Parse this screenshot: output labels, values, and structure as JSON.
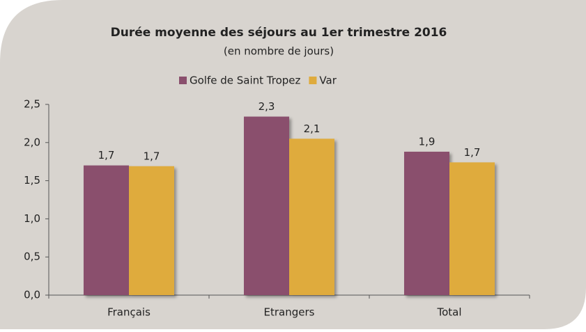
{
  "chart_data": {
    "type": "bar",
    "title": "Durée moyenne des séjours au 1er trimestre 2016",
    "subtitle": "(en nombre de jours)",
    "categories": [
      "Français",
      "Etrangers",
      "Total"
    ],
    "series": [
      {
        "name": "Golfe de Saint Tropez",
        "color": "#8a4f6d",
        "values": [
          1.7,
          2.34,
          1.88
        ],
        "value_labels": [
          "1,7",
          "2,3",
          "1,9"
        ]
      },
      {
        "name": "Var",
        "color": "#dfab3d",
        "values": [
          1.69,
          2.05,
          1.74
        ],
        "value_labels": [
          "1,7",
          "2,1",
          "1,7"
        ]
      }
    ],
    "ylim": [
      0,
      2.5
    ],
    "yticks": [
      {
        "value": 0,
        "label": "0,0"
      },
      {
        "value": 0.5,
        "label": "0,5"
      },
      {
        "value": 1,
        "label": "1,0"
      },
      {
        "value": 1.5,
        "label": "1,5"
      },
      {
        "value": 2,
        "label": "2,0"
      },
      {
        "value": 2.5,
        "label": "2,5"
      }
    ],
    "grid": false
  }
}
